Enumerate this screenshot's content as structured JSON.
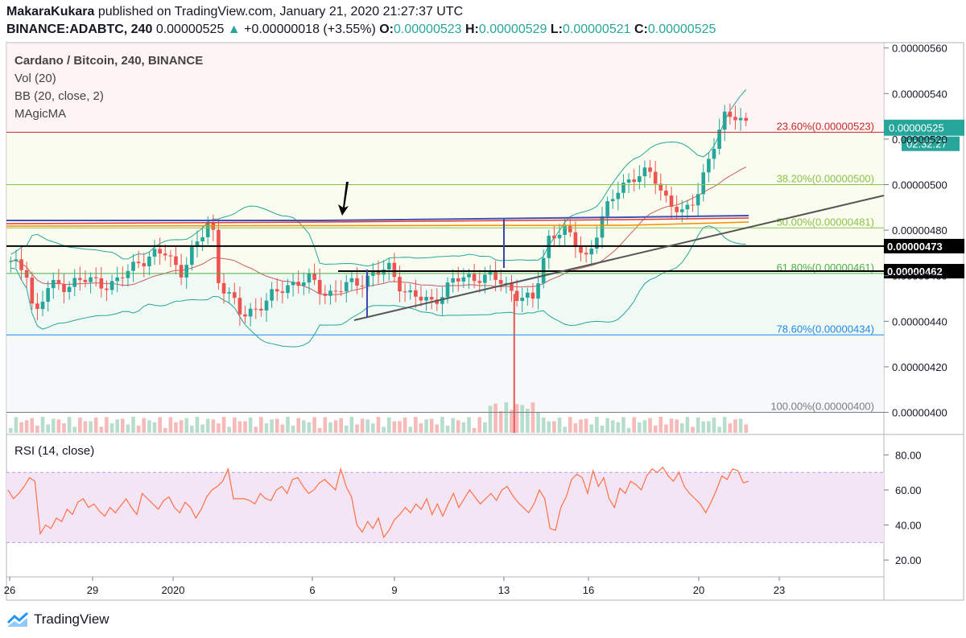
{
  "header": {
    "author": "MakaraKukara",
    "published": "published on TradingView.com, January 21, 2020 21:27:37 UTC",
    "symbol": "BINANCE:ADABTC, 240",
    "last": "0.00000525",
    "change": "+0.00000018 (+3.55%)",
    "o_label": "O:",
    "o": "0.00000523",
    "h_label": "H:",
    "h": "0.00000529",
    "l_label": "L:",
    "l": "0.00000521",
    "c_label": "C:",
    "c": "0.00000525"
  },
  "legend": [
    "Cardano / Bitcoin, 240, BINANCE",
    "Vol (20)",
    "BB (20, close, 2)",
    "MAgicMA"
  ],
  "rsi_label": "RSI (14, close)",
  "footer_brand": "TradingView",
  "colors": {
    "up": "#26a69a",
    "down": "#ef5350",
    "fib_red": "#c62828",
    "fib_green": "#8bc34a",
    "fib_blue": "#1e88e5",
    "rsi": "#ff7043",
    "rsi_band": "#f3e5f5"
  },
  "chart_data": {
    "type": "candlestick",
    "price_axis": [
      "0.00000560",
      "0.00000540",
      "0.00000520",
      "0.00000500",
      "0.00000480",
      "0.00000460",
      "0.00000440",
      "0.00000420",
      "0.00000400"
    ],
    "price_range": [
      3.91e-06,
      5.62e-06
    ],
    "x_ticks": [
      "26",
      "29",
      "2020",
      "6",
      "9",
      "13",
      "16",
      "20",
      "23"
    ],
    "fib_levels": [
      {
        "label": "23.60%(0.00000523)",
        "value": 5.23e-06,
        "color": "#c62828"
      },
      {
        "label": "38.20%(0.00000500)",
        "value": 5e-06,
        "color": "#8bc34a"
      },
      {
        "label": "50.00%(0.00000481)",
        "value": 4.81e-06,
        "color": "#8bc34a"
      },
      {
        "label": "61.80%(0.00000461)",
        "value": 4.61e-06,
        "color": "#4caf50"
      },
      {
        "label": "78.60%(0.00000434)",
        "value": 4.34e-06,
        "color": "#1e88e5"
      },
      {
        "label": "100.00%(0.00000400)",
        "value": 4e-06,
        "color": "#787b86"
      }
    ],
    "horizontal_lines": [
      {
        "label": "0.00000473",
        "value": 4.73e-06
      },
      {
        "label": "0.00000462",
        "value": 4.62e-06
      }
    ],
    "last_price_label": "0.00000525",
    "countdown": "02:32:27",
    "rsi": {
      "axis": [
        "80.00",
        "60.00",
        "40.00",
        "20.00"
      ],
      "range": [
        15,
        88
      ],
      "band": [
        30,
        70
      ],
      "values": [
        60,
        55,
        58,
        62,
        67,
        65,
        35,
        40,
        38,
        44,
        42,
        49,
        46,
        53,
        55,
        50,
        52,
        48,
        45,
        50,
        47,
        51,
        55,
        50,
        46,
        58,
        55,
        52,
        49,
        54,
        56,
        50,
        47,
        53,
        50,
        44,
        49,
        56,
        60,
        62,
        65,
        72,
        55,
        55,
        55,
        54,
        52,
        58,
        55,
        54,
        60,
        62,
        58,
        66,
        67,
        62,
        58,
        60,
        64,
        66,
        63,
        60,
        72,
        62,
        56,
        40,
        36,
        42,
        38,
        44,
        33,
        37,
        43,
        46,
        50,
        47,
        52,
        49,
        55,
        46,
        52,
        45,
        52,
        58,
        50,
        55,
        60,
        56,
        52,
        55,
        58,
        54,
        60,
        62,
        57,
        53,
        50,
        47,
        52,
        60,
        55,
        38,
        37,
        50,
        56,
        66,
        69,
        67,
        58,
        71,
        62,
        67,
        55,
        50,
        61,
        58,
        65,
        63,
        60,
        68,
        72,
        70,
        73,
        68,
        65,
        70,
        62,
        58,
        55,
        52,
        47,
        53,
        60,
        68,
        66,
        72,
        71,
        64,
        65
      ]
    }
  }
}
